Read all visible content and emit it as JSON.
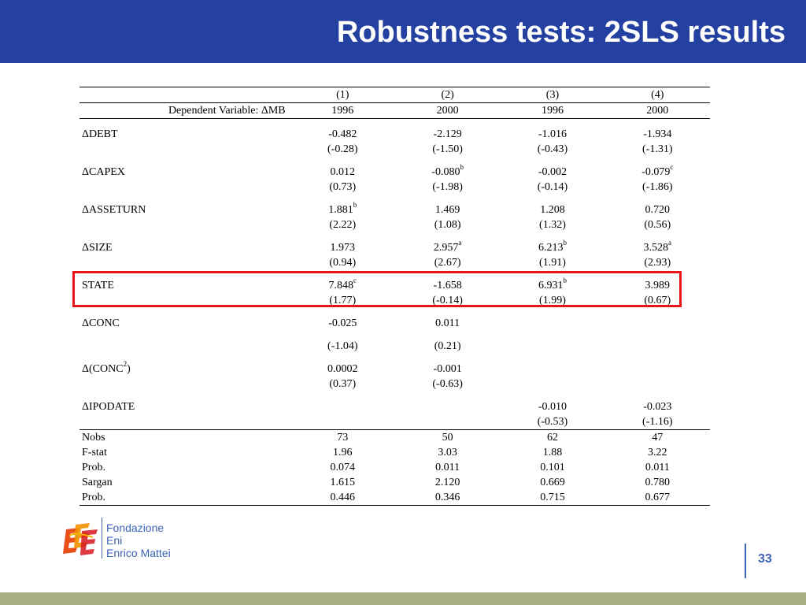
{
  "title": "Robustness tests: 2SLS results",
  "table": {
    "column_numbers": [
      "(1)",
      "(2)",
      "(3)",
      "(4)"
    ],
    "dependent_variable_label": "Dependent Variable: ΔMB",
    "years": [
      "1996",
      "2000",
      "1996",
      "2000"
    ],
    "variables": [
      {
        "name": "ΔDEBT",
        "coefs": [
          "-0.482",
          "-2.129",
          "-1.016",
          "-1.934"
        ],
        "sigs": [
          "",
          "",
          "",
          ""
        ],
        "tstats": [
          "(-0.28)",
          "(-1.50)",
          "(-0.43)",
          "(-1.31)"
        ]
      },
      {
        "name": "ΔCAPEX",
        "coefs": [
          "0.012",
          "-0.080",
          "-0.002",
          "-0.079"
        ],
        "sigs": [
          "",
          "b",
          "",
          "c"
        ],
        "tstats": [
          "(0.73)",
          "(-1.98)",
          "(-0.14)",
          "(-1.86)"
        ]
      },
      {
        "name": "ΔASSETURN",
        "coefs": [
          "1.881",
          "1.469",
          "1.208",
          "0.720"
        ],
        "sigs": [
          "b",
          "",
          "",
          ""
        ],
        "tstats": [
          "(2.22)",
          "(1.08)",
          "(1.32)",
          "(0.56)"
        ]
      },
      {
        "name": "ΔSIZE",
        "coefs": [
          "1.973",
          "2.957",
          "6.213",
          "3.528"
        ],
        "sigs": [
          "",
          "a",
          "b",
          "a"
        ],
        "tstats": [
          "(0.94)",
          "(2.67)",
          "(1.91)",
          "(2.93)"
        ]
      },
      {
        "name": "STATE",
        "coefs": [
          "7.848",
          "-1.658",
          "6.931",
          "3.989"
        ],
        "sigs": [
          "c",
          "",
          "b",
          ""
        ],
        "tstats": [
          "(1.77)",
          "(-0.14)",
          "(1.99)",
          "(0.67)"
        ],
        "highlighted": true
      },
      {
        "name": "ΔCONC",
        "coefs": [
          "-0.025",
          "0.011",
          "",
          ""
        ],
        "sigs": [
          "",
          "",
          "",
          ""
        ],
        "tstats": [
          "(-1.04)",
          "(0.21)",
          "",
          ""
        ]
      },
      {
        "name_prefix": "Δ(CONC",
        "name_sup": "2",
        "name_suffix": ")",
        "coefs": [
          "0.0002",
          "-0.001",
          "",
          ""
        ],
        "sigs": [
          "",
          "",
          "",
          ""
        ],
        "tstats": [
          "(0.37)",
          "(-0.63)",
          "",
          ""
        ]
      },
      {
        "name": "ΔIPODATE",
        "coefs": [
          "",
          "",
          "-0.010",
          "-0.023"
        ],
        "sigs": [
          "",
          "",
          "",
          ""
        ],
        "tstats": [
          "",
          "",
          "(-0.53)",
          "(-1.16)"
        ]
      }
    ],
    "stats": [
      {
        "label": "Nobs",
        "values": [
          "73",
          "50",
          "62",
          "47"
        ]
      },
      {
        "label": "F-stat",
        "values": [
          "1.96",
          "3.03",
          "1.88",
          "3.22"
        ]
      },
      {
        "label": "Prob.",
        "values": [
          "0.074",
          "0.011",
          "0.101",
          "0.011"
        ]
      },
      {
        "label": "Sargan",
        "values": [
          "1.615",
          "2.120",
          "0.669",
          "0.780"
        ]
      },
      {
        "label": "Prob.",
        "values": [
          "0.446",
          "0.346",
          "0.715",
          "0.677"
        ]
      }
    ]
  },
  "logo": {
    "line1": "Fondazione",
    "line2": "Eni",
    "line3": "Enrico Mattei"
  },
  "page_number": "33",
  "colors": {
    "title_bar": "#2440a0",
    "highlight": "#e8141a",
    "footer_band": "#a7b184",
    "logo_text": "#3b63b6"
  }
}
